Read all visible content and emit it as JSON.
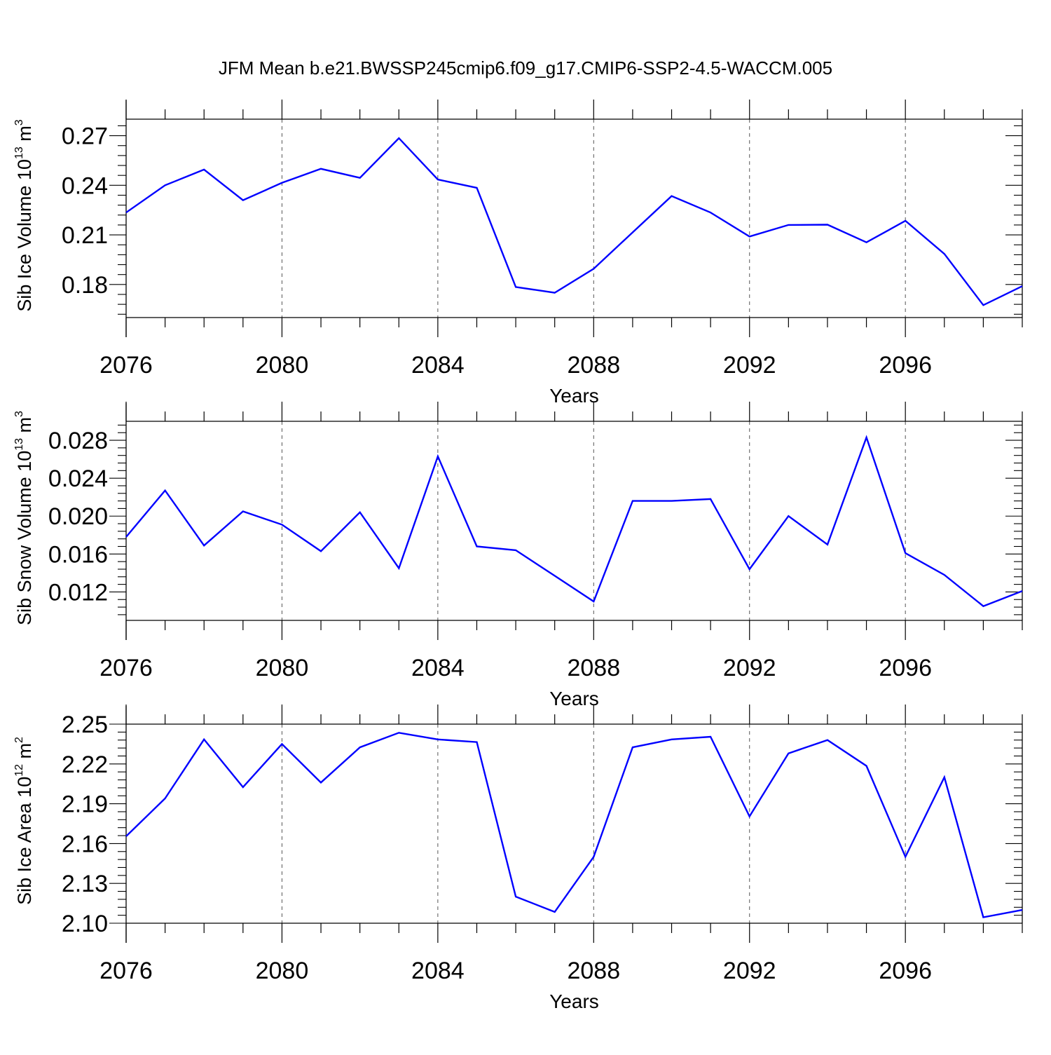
{
  "title": "JFM Mean b.e21.BWSSP245cmip6.f09_g17.CMIP6-SSP2-4.5-WACCM.005",
  "chart_data": [
    {
      "type": "line",
      "ylabel": {
        "base": "Sib Ice Volume 10",
        "exp": "13",
        "unit": " m",
        "unit_exp": "3"
      },
      "xlabel": "Years",
      "x": [
        2076,
        2077,
        2078,
        2079,
        2080,
        2081,
        2082,
        2083,
        2084,
        2085,
        2086,
        2087,
        2088,
        2089,
        2090,
        2091,
        2092,
        2093,
        2094,
        2095,
        2096,
        2097,
        2098,
        2099
      ],
      "values": [
        0.2235,
        0.24,
        0.2495,
        0.231,
        0.2415,
        0.25,
        0.2445,
        0.2685,
        0.2435,
        0.2385,
        0.1785,
        0.175,
        0.1895,
        0.2115,
        0.2335,
        0.2235,
        0.209,
        0.216,
        0.2162,
        0.2055,
        0.2185,
        0.1985,
        0.1675,
        0.179
      ],
      "ylim": [
        0.16,
        0.28
      ],
      "yticks": [
        "0.27",
        "0.24",
        "0.21",
        "0.18"
      ],
      "ytick_values": [
        0.27,
        0.24,
        0.21,
        0.18
      ],
      "xticks": [
        "2076",
        "2080",
        "2084",
        "2088",
        "2092",
        "2096"
      ],
      "xtick_values": [
        2076,
        2080,
        2084,
        2088,
        2092,
        2096
      ],
      "xlim": [
        2076,
        2099
      ],
      "line_color": "#0000ff"
    },
    {
      "type": "line",
      "ylabel": {
        "base": "Sib Snow Volume 10",
        "exp": "13",
        "unit": " m",
        "unit_exp": "3"
      },
      "xlabel": "Years",
      "x": [
        2076,
        2077,
        2078,
        2079,
        2080,
        2081,
        2082,
        2083,
        2084,
        2085,
        2086,
        2087,
        2088,
        2089,
        2090,
        2091,
        2092,
        2093,
        2094,
        2095,
        2096,
        2097,
        2098,
        2099
      ],
      "values": [
        0.0178,
        0.0227,
        0.0169,
        0.0205,
        0.0191,
        0.0163,
        0.0204,
        0.0145,
        0.0263,
        0.0168,
        0.0164,
        0.0137,
        0.011,
        0.0216,
        0.0216,
        0.0218,
        0.0144,
        0.02,
        0.017,
        0.0283,
        0.0161,
        0.0138,
        0.0105,
        0.0121
      ],
      "ylim": [
        0.009,
        0.03
      ],
      "yticks": [
        "0.028",
        "0.024",
        "0.020",
        "0.016",
        "0.012"
      ],
      "ytick_values": [
        0.028,
        0.024,
        0.02,
        0.016,
        0.012
      ],
      "xticks": [
        "2076",
        "2080",
        "2084",
        "2088",
        "2092",
        "2096"
      ],
      "xtick_values": [
        2076,
        2080,
        2084,
        2088,
        2092,
        2096
      ],
      "xlim": [
        2076,
        2099
      ],
      "line_color": "#0000ff"
    },
    {
      "type": "line",
      "ylabel": {
        "base": "Sib Ice Area 10",
        "exp": "12",
        "unit": " m",
        "unit_exp": "2"
      },
      "xlabel": "Years",
      "x": [
        2076,
        2077,
        2078,
        2079,
        2080,
        2081,
        2082,
        2083,
        2084,
        2085,
        2086,
        2087,
        2088,
        2089,
        2090,
        2091,
        2092,
        2093,
        2094,
        2095,
        2096,
        2097,
        2098,
        2099
      ],
      "values": [
        2.1655,
        2.194,
        2.2385,
        2.2025,
        2.235,
        2.206,
        2.2325,
        2.2435,
        2.2385,
        2.2365,
        2.12,
        2.1085,
        2.15,
        2.2325,
        2.2385,
        2.2405,
        2.1805,
        2.228,
        2.238,
        2.2185,
        2.15,
        2.21,
        2.1045,
        2.11
      ],
      "ylim": [
        2.1,
        2.25
      ],
      "yticks": [
        "2.25",
        "2.22",
        "2.19",
        "2.16",
        "2.13",
        "2.10"
      ],
      "ytick_values": [
        2.25,
        2.22,
        2.19,
        2.16,
        2.13,
        2.1
      ],
      "xticks": [
        "2076",
        "2080",
        "2084",
        "2088",
        "2092",
        "2096"
      ],
      "xtick_values": [
        2076,
        2080,
        2084,
        2088,
        2092,
        2096
      ],
      "xlim": [
        2076,
        2099
      ],
      "line_color": "#0000ff"
    }
  ]
}
